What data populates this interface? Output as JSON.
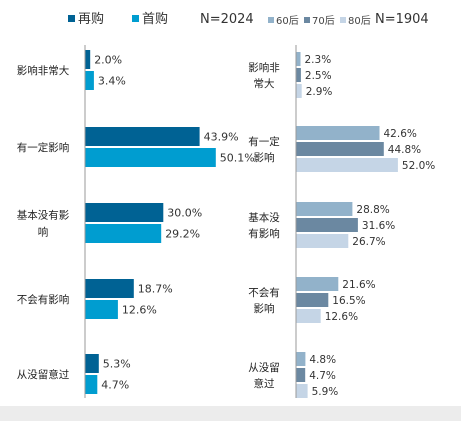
{
  "charts": {
    "left": {
      "legend": [
        {
          "label": "再购",
          "color": "#006294"
        },
        {
          "label": "首购",
          "color": "#009dd0"
        }
      ],
      "n_label": "N=2024"
    },
    "right": {
      "legend": [
        {
          "label": "60后",
          "color": "#92b2ca"
        },
        {
          "label": "70后",
          "color": "#6b88a1"
        },
        {
          "label": "80后",
          "color": "#c5d5e6"
        }
      ],
      "n_label": "N=1904"
    }
  },
  "chart_data": [
    {
      "type": "bar",
      "orientation": "horizontal",
      "categories": [
        "影响非常大",
        "有一定影响",
        "基本没有影响",
        "不会有影响",
        "从没留意过"
      ],
      "series": [
        {
          "name": "再购",
          "values": [
            2.0,
            43.9,
            30.0,
            18.7,
            5.3
          ],
          "labels": [
            "2.0%",
            "43.9%",
            "30.0%",
            "18.7%",
            "5.3%"
          ]
        },
        {
          "name": "首购",
          "values": [
            3.4,
            50.1,
            29.2,
            12.6,
            4.7
          ],
          "labels": [
            "3.4%",
            "50.1%",
            "29.2%",
            "12.6%",
            "4.7%"
          ]
        }
      ],
      "unit": "%",
      "legend_position": "top-left"
    },
    {
      "type": "bar",
      "orientation": "horizontal",
      "categories": [
        "影响非常大",
        "有一定影响",
        "基本没有影响",
        "不会有影响",
        "从没留意过"
      ],
      "series": [
        {
          "name": "60后",
          "values": [
            2.3,
            42.6,
            28.8,
            21.6,
            4.8
          ],
          "labels": [
            "2.3%",
            "42.6%",
            "28.8%",
            "21.6%",
            "4.8%"
          ]
        },
        {
          "name": "70后",
          "values": [
            2.5,
            44.8,
            31.6,
            16.5,
            4.7
          ],
          "labels": [
            "2.5%",
            "44.8%",
            "31.6%",
            "16.5%",
            "4.7%"
          ]
        },
        {
          "name": "80后",
          "values": [
            2.9,
            52.0,
            26.7,
            12.6,
            5.9
          ],
          "labels": [
            "2.9%",
            "52.0%",
            "26.7%",
            "12.6%",
            "5.9%"
          ]
        }
      ],
      "unit": "%",
      "legend_position": "top-right"
    }
  ]
}
